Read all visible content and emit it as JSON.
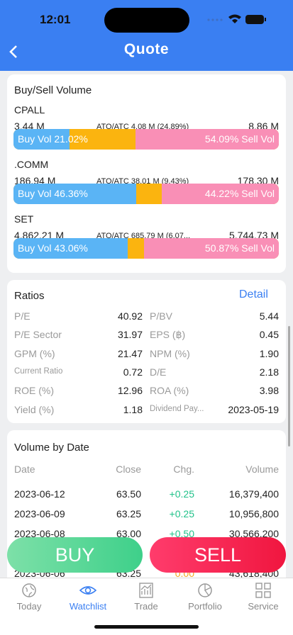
{
  "status": {
    "time": "12:01"
  },
  "header": {
    "title": "Quote"
  },
  "buysell": {
    "title": "Buy/Sell Volume",
    "items": [
      {
        "name": "CPALL",
        "buy": "3.44 M",
        "ato": "ATO/ATC 4.08 M (24.89%)",
        "sell": "8.86 M",
        "buy_label": "Buy Vol 21.02%",
        "sell_label": "54.09% Sell Vol",
        "buy_pct": 21.02,
        "sell_pct": 54.09
      },
      {
        "name": ".COMM",
        "buy": "186.94 M",
        "ato": "ATO/ATC 38.01 M (9.43%)",
        "sell": "178.30 M",
        "buy_label": "Buy Vol 46.36%",
        "sell_label": "44.22% Sell Vol",
        "buy_pct": 46.36,
        "sell_pct": 44.22
      },
      {
        "name": "SET",
        "buy": "4,862.21 M",
        "ato": "ATO/ATC 685.79 M (6.07...",
        "sell": "5,744.73 M",
        "buy_label": "Buy Vol 43.06%",
        "sell_label": "50.87% Sell Vol",
        "buy_pct": 43.06,
        "sell_pct": 50.87
      }
    ]
  },
  "ratios": {
    "title": "Ratios",
    "detail": "Detail",
    "rows": [
      [
        "P/E",
        "40.92",
        "P/BV",
        "5.44"
      ],
      [
        "P/E Sector",
        "31.97",
        "EPS (฿)",
        "0.45"
      ],
      [
        "GPM (%)",
        "21.47",
        "NPM (%)",
        "1.90"
      ],
      [
        "Current Ratio",
        "0.72",
        "D/E",
        "2.18"
      ],
      [
        "ROE (%)",
        "12.96",
        "ROA (%)",
        "3.98"
      ],
      [
        "Yield (%)",
        "1.18",
        "Dividend Pay...",
        "2023-05-19"
      ]
    ]
  },
  "volume": {
    "title": "Volume by Date",
    "headers": [
      "Date",
      "Close",
      "Chg.",
      "Volume"
    ],
    "rows": [
      [
        "2023-06-12",
        "63.50",
        "+0.25",
        "16,379,400"
      ],
      [
        "2023-06-09",
        "63.25",
        "+0.25",
        "10,956,800"
      ],
      [
        "2023-06-08",
        "63.00",
        "+0.50",
        "30,566,200"
      ],
      [
        "2023-06-06",
        "63.25",
        "0.00",
        "43,618,400"
      ]
    ]
  },
  "buttons": {
    "buy": "BUY",
    "sell": "SELL"
  },
  "tabs": [
    "Today",
    "Watchlist",
    "Trade",
    "Portfolio",
    "Service"
  ]
}
